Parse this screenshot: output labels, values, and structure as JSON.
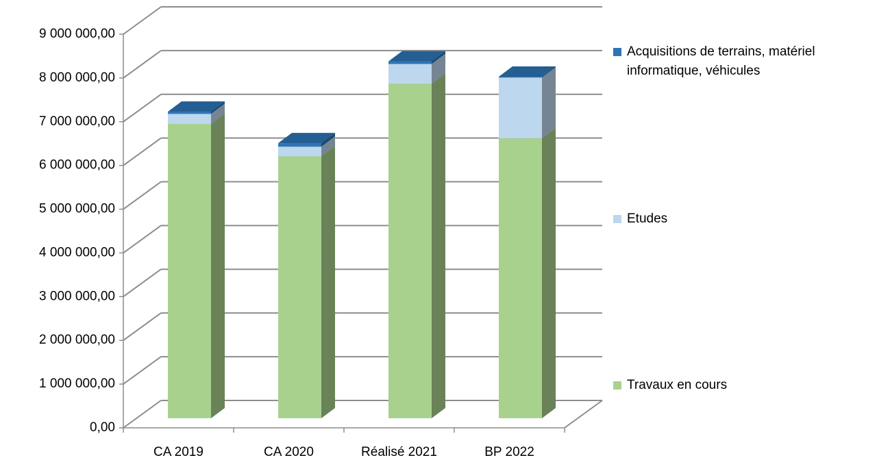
{
  "chart_data": {
    "type": "bar3d-stacked",
    "categories": [
      "CA 2019",
      "CA 2020",
      "Réalisé 2021",
      "BP 2022"
    ],
    "series": [
      {
        "name": "Travaux en cours",
        "color": "#a9d18e",
        "values": [
          6730000,
          5990000,
          7650000,
          6400000
        ]
      },
      {
        "name": "Etudes",
        "color": "#bdd7ee",
        "values": [
          230000,
          220000,
          450000,
          1390000
        ]
      },
      {
        "name": "Acquisitions de terrains, matériel informatique, véhicules",
        "color": "#2e75b6",
        "values": [
          50000,
          80000,
          60000,
          20000
        ]
      }
    ],
    "ylim": [
      0,
      9000000
    ],
    "yticks": [
      {
        "value": 0,
        "label": "0,00"
      },
      {
        "value": 1000000,
        "label": "1 000 000,00"
      },
      {
        "value": 2000000,
        "label": "2 000 000,00"
      },
      {
        "value": 3000000,
        "label": "3 000 000,00"
      },
      {
        "value": 4000000,
        "label": "4 000 000,00"
      },
      {
        "value": 5000000,
        "label": "5 000 000,00"
      },
      {
        "value": 6000000,
        "label": "6 000 000,00"
      },
      {
        "value": 7000000,
        "label": "7 000 000,00"
      },
      {
        "value": 8000000,
        "label": "8 000 000,00"
      },
      {
        "value": 9000000,
        "label": "9 000 000,00"
      }
    ],
    "grid": true
  }
}
